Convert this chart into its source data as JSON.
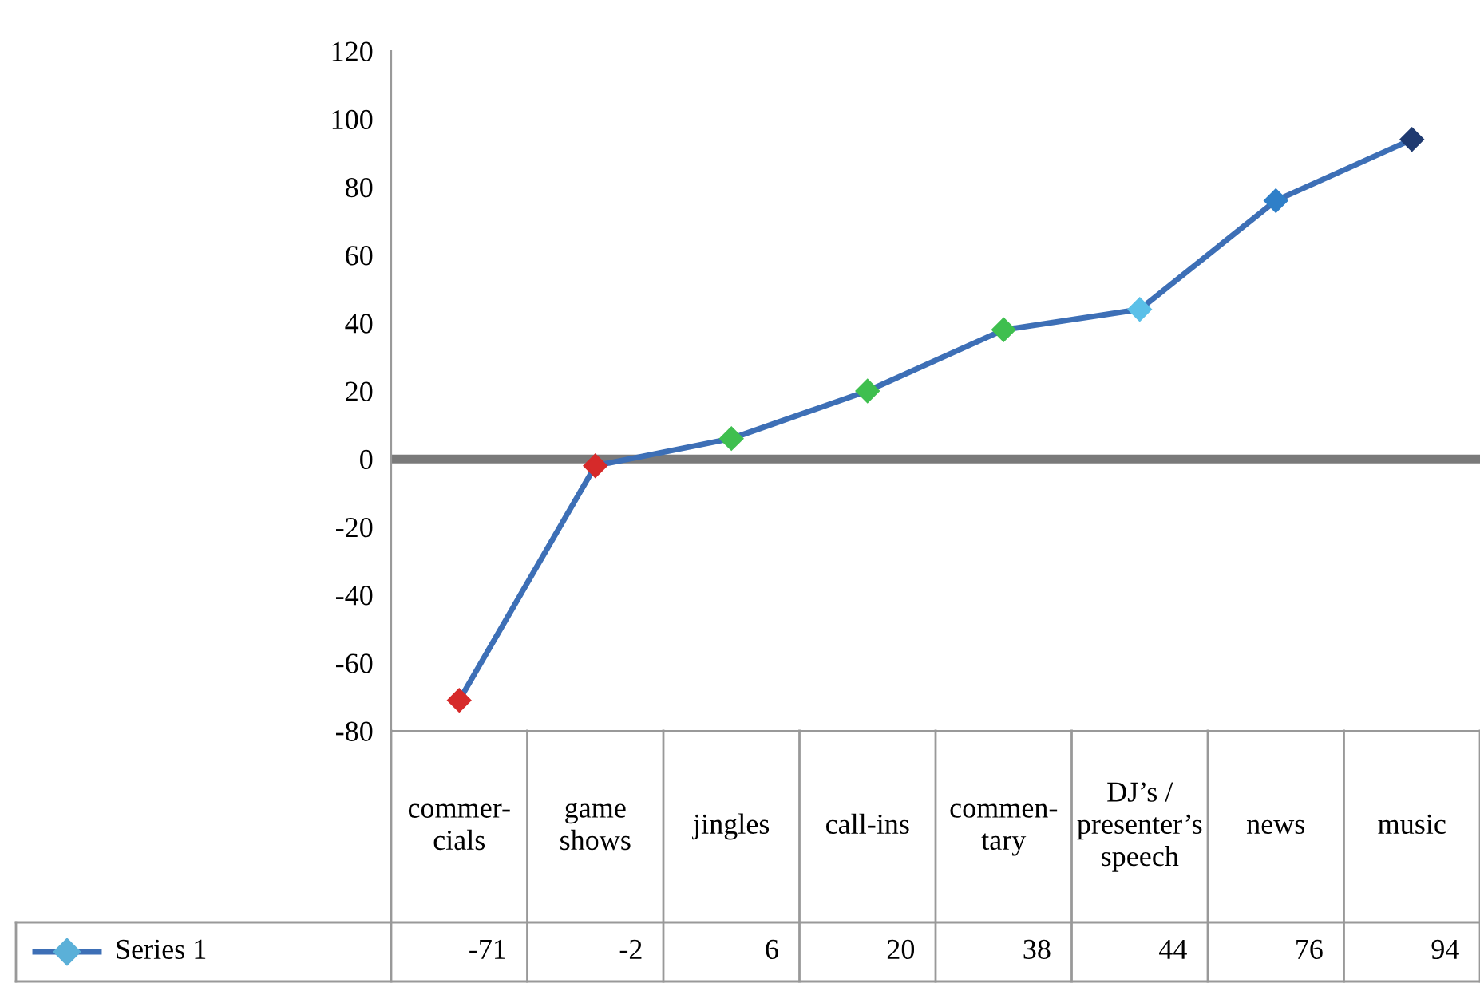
{
  "chart_data": {
    "type": "line",
    "categories": [
      "commer-\ncials",
      "game\nshows",
      "jingles",
      "call-ins",
      "commen-\ntary",
      "DJ’s /\npresenter’s\nspeech",
      "news",
      "music"
    ],
    "series": [
      {
        "name": "Series 1",
        "color": "#3d6fb6",
        "colors": [
          "#d62a2a",
          "#d62a2a",
          "#3fbf4f",
          "#3fbf4f",
          "#3fbf4f",
          "#5bc0e8",
          "#2f7fc8",
          "#1f3a70"
        ],
        "values": [
          -71,
          -2,
          6,
          20,
          38,
          44,
          76,
          94
        ]
      }
    ],
    "ylim": [
      -80,
      120
    ],
    "yticks": [
      -80,
      -60,
      -40,
      -20,
      0,
      20,
      40,
      60,
      80,
      100,
      120
    ],
    "ref_lines": [
      {
        "axis": "y",
        "value": 0,
        "color": "#7a7a7a"
      }
    ],
    "grid": false,
    "marker": "diamond",
    "line_style": "solid",
    "data_labels": true,
    "legend": "bottom"
  }
}
